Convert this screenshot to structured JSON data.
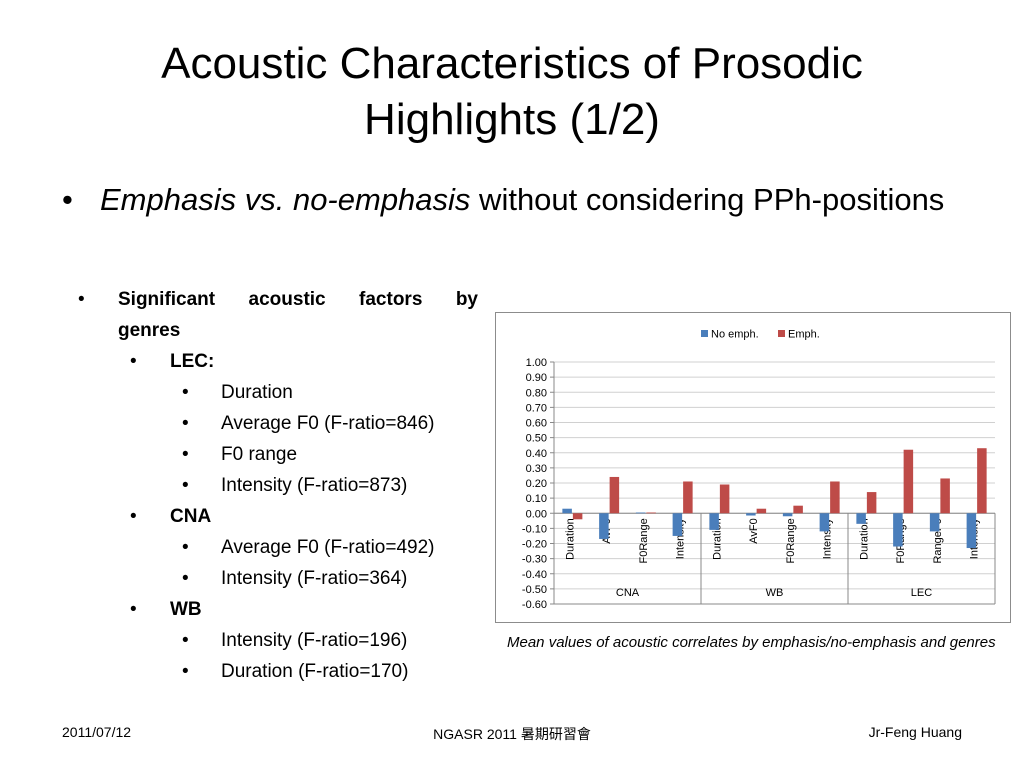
{
  "slide": {
    "title_line1": "Acoustic Characteristics of Prosodic",
    "title_line2": "Highlights (1/2)",
    "bullet_italic": "Emphasis vs. no-emphasis",
    "bullet_rest": " without considering PPh-positions",
    "bullet_glyph": "•",
    "sub_heading_line1": "Significant acoustic factors by",
    "sub_heading_line2": "genres",
    "genres": [
      {
        "name": "LEC:",
        "items": [
          "Duration",
          "Average F0 (F-ratio=846)",
          "F0 range",
          "Intensity (F-ratio=873)"
        ]
      },
      {
        "name": "CNA",
        "items": [
          "Average F0 (F-ratio=492)",
          "Intensity (F-ratio=364)"
        ]
      },
      {
        "name": "WB",
        "items": [
          "Intensity (F-ratio=196)",
          "Duration (F-ratio=170)"
        ]
      }
    ],
    "caption": "Mean values of acoustic correlates by emphasis/no-emphasis and genres"
  },
  "footer": {
    "date": "2011/07/12",
    "center": "NGASR 2011 暑期研習會",
    "author": "Jr-Feng Huang"
  },
  "chart_data": {
    "type": "bar",
    "groups": [
      {
        "name": "CNA",
        "categories": [
          "Duration",
          "AvF0",
          "F0Range",
          "Intensity"
        ]
      },
      {
        "name": "WB",
        "categories": [
          "Duration",
          "AvF0",
          "F0Range",
          "Intensity"
        ]
      },
      {
        "name": "LEC",
        "categories": [
          "Duration",
          "F0Range",
          "RangeF0",
          "Intensity"
        ]
      }
    ],
    "series": [
      {
        "name": "No emph.",
        "color": "#4a7ebb",
        "values": [
          0.03,
          -0.17,
          0.005,
          -0.15,
          -0.11,
          -0.015,
          -0.02,
          -0.12,
          -0.07,
          -0.22,
          -0.12,
          -0.23
        ]
      },
      {
        "name": "Emph.",
        "color": "#be4b48",
        "values": [
          -0.04,
          0.24,
          0.005,
          0.21,
          0.19,
          0.03,
          0.05,
          0.21,
          0.14,
          0.42,
          0.23,
          0.43
        ]
      }
    ],
    "ylim": [
      -0.6,
      1.0
    ],
    "yticks": [
      "1.00",
      "0.90",
      "0.80",
      "0.70",
      "0.60",
      "0.50",
      "0.40",
      "0.30",
      "0.20",
      "0.10",
      "0.00",
      "-0.10",
      "-0.20",
      "-0.30",
      "-0.40",
      "-0.50",
      "-0.60"
    ],
    "grid": true,
    "legend_position": "top"
  }
}
